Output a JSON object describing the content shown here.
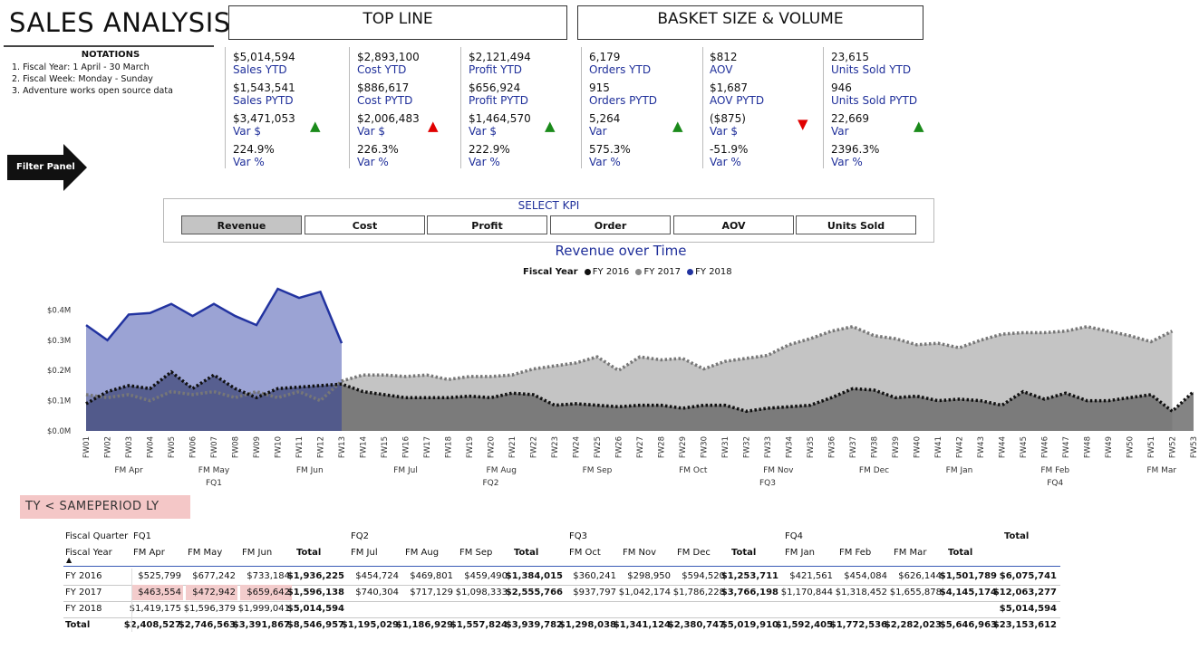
{
  "page": {
    "title": "SALES ANALYSIS"
  },
  "notations": {
    "heading": "NOTATIONS",
    "items": [
      "1. Fiscal Year:  1 April - 30 March",
      "2. Fiscal Week: Monday - Sunday",
      "3. Adventure works open source data"
    ]
  },
  "filter_panel": {
    "label": "Filter Panel"
  },
  "sections": {
    "top_line": "TOP LINE",
    "basket": "BASKET SIZE & VOLUME"
  },
  "kpis": [
    {
      "v1": "$5,014,594",
      "l1": "Sales YTD",
      "v2": "$1,543,541",
      "l2": "Sales PYTD",
      "v3": "$3,471,053",
      "l3": "Var $",
      "v4": "224.9%",
      "l4": "Var %",
      "trend": "up"
    },
    {
      "v1": "$2,893,100",
      "l1": "Cost YTD",
      "v2": "$886,617",
      "l2": "Cost PYTD",
      "v3": "$2,006,483",
      "l3": "Var $",
      "v4": "226.3%",
      "l4": "Var %",
      "trend": "up-red"
    },
    {
      "v1": "$2,121,494",
      "l1": "Profit YTD",
      "v2": "$656,924",
      "l2": "Profit PYTD",
      "v3": "$1,464,570",
      "l3": "Var $",
      "v4": "222.9%",
      "l4": "Var %",
      "trend": "up"
    },
    {
      "v1": "6,179",
      "l1": "Orders YTD",
      "v2": "915",
      "l2": "Orders PYTD",
      "v3": "5,264",
      "l3": "Var",
      "v4": "575.3%",
      "l4": "Var %",
      "trend": "up"
    },
    {
      "v1": "$812",
      "l1": "AOV",
      "v2": "$1,687",
      "l2": "AOV PYTD",
      "v3": "($875)",
      "l3": "Var $",
      "v4": "-51.9%",
      "l4": "Var %",
      "trend": "down"
    },
    {
      "v1": "23,615",
      "l1": "Units Sold YTD",
      "v2": "946",
      "l2": "Units Sold PYTD",
      "v3": "22,669",
      "l3": "Var",
      "v4": "2396.3%",
      "l4": "Var %",
      "trend": "up"
    }
  ],
  "kpi_selector": {
    "caption": "SELECT KPI",
    "buttons": [
      "Revenue",
      "Cost",
      "Profit",
      "Order",
      "AOV",
      "Units Sold"
    ],
    "selected": "Revenue"
  },
  "chart_data": {
    "type": "area",
    "title": "Revenue over Time",
    "legend_title": "Fiscal Year",
    "legend_placement": "top-center",
    "y_ticks": [
      "$0.0M",
      "$0.1M",
      "$0.2M",
      "$0.3M",
      "$0.4M"
    ],
    "ylim": [
      0,
      0.45
    ],
    "x": [
      "FW01",
      "FW02",
      "FW03",
      "FW04",
      "FW05",
      "FW06",
      "FW07",
      "FW08",
      "FW09",
      "FW10",
      "FW11",
      "FW12",
      "FW13",
      "FW14",
      "FW15",
      "FW16",
      "FW17",
      "FW18",
      "FW19",
      "FW20",
      "FW21",
      "FW22",
      "FW23",
      "FW24",
      "FW25",
      "FW26",
      "FW27",
      "FW28",
      "FW29",
      "FW30",
      "FW31",
      "FW32",
      "FW33",
      "FW34",
      "FW35",
      "FW36",
      "FW37",
      "FW38",
      "FW39",
      "FW40",
      "FW41",
      "FW42",
      "FW43",
      "FW44",
      "FW45",
      "FW46",
      "FW47",
      "FW48",
      "FW49",
      "FW50",
      "FW51",
      "FW52",
      "FW53"
    ],
    "months": [
      {
        "label": "FM Apr",
        "at": 2
      },
      {
        "label": "FM May",
        "at": 6
      },
      {
        "label": "FM Jun",
        "at": 10.5
      },
      {
        "label": "FM Jul",
        "at": 15
      },
      {
        "label": "FM Aug",
        "at": 19.5
      },
      {
        "label": "FM Sep",
        "at": 24
      },
      {
        "label": "FM Oct",
        "at": 28.5
      },
      {
        "label": "FM Nov",
        "at": 32.5
      },
      {
        "label": "FM Dec",
        "at": 37
      },
      {
        "label": "FM Jan",
        "at": 41
      },
      {
        "label": "FM Feb",
        "at": 45.5
      },
      {
        "label": "FM Mar",
        "at": 50.5
      }
    ],
    "quarters": [
      {
        "label": "FQ1",
        "at": 6
      },
      {
        "label": "FQ2",
        "at": 19
      },
      {
        "label": "FQ3",
        "at": 32
      },
      {
        "label": "FQ4",
        "at": 45.5
      }
    ],
    "series": [
      {
        "name": "FY 2016",
        "color": "#111111",
        "style": "dotted",
        "values": [
          0.09,
          0.13,
          0.15,
          0.14,
          0.195,
          0.14,
          0.185,
          0.14,
          0.11,
          0.14,
          0.145,
          0.15,
          0.155,
          0.13,
          0.12,
          0.11,
          0.11,
          0.11,
          0.115,
          0.11,
          0.125,
          0.12,
          0.085,
          0.09,
          0.085,
          0.08,
          0.085,
          0.085,
          0.075,
          0.085,
          0.085,
          0.065,
          0.075,
          0.08,
          0.085,
          0.11,
          0.14,
          0.135,
          0.11,
          0.115,
          0.1,
          0.105,
          0.1,
          0.085,
          0.13,
          0.105,
          0.125,
          0.1,
          0.1,
          0.11,
          0.12,
          0.065,
          0.13
        ]
      },
      {
        "name": "FY 2017",
        "color": "#888888",
        "style": "dotted",
        "values": [
          0.12,
          0.11,
          0.12,
          0.1,
          0.13,
          0.12,
          0.13,
          0.11,
          0.13,
          0.11,
          0.13,
          0.1,
          0.165,
          0.185,
          0.185,
          0.18,
          0.185,
          0.17,
          0.18,
          0.18,
          0.185,
          0.205,
          0.215,
          0.225,
          0.245,
          0.2,
          0.245,
          0.235,
          0.24,
          0.205,
          0.23,
          0.24,
          0.25,
          0.285,
          0.305,
          0.33,
          0.345,
          0.315,
          0.305,
          0.285,
          0.29,
          0.275,
          0.3,
          0.32,
          0.325,
          0.325,
          0.33,
          0.345,
          0.33,
          0.315,
          0.295,
          0.33,
          null
        ]
      },
      {
        "name": "FY 2018",
        "color": "#2233a0",
        "style": "solid",
        "values": [
          0.35,
          0.3,
          0.385,
          0.39,
          0.42,
          0.38,
          0.42,
          0.38,
          0.35,
          0.47,
          0.44,
          0.46,
          0.29,
          null,
          null,
          null,
          null,
          null,
          null,
          null,
          null,
          null,
          null,
          null,
          null,
          null,
          null,
          null,
          null,
          null,
          null,
          null,
          null,
          null,
          null,
          null,
          null,
          null,
          null,
          null,
          null,
          null,
          null,
          null,
          null,
          null,
          null,
          null,
          null,
          null,
          null,
          null,
          null
        ]
      }
    ]
  },
  "matrix": {
    "title": "TY < SAMEPERIOD LY",
    "row_header_quarter": "Fiscal Quarter",
    "row_header_year": "Fiscal Year",
    "quarters": [
      "FQ1",
      "FQ2",
      "FQ3",
      "FQ4"
    ],
    "total_label": "Total",
    "columns": [
      "FM Apr",
      "FM May",
      "FM Jun",
      "Total",
      "FM Jul",
      "FM Aug",
      "FM Sep",
      "Total",
      "FM Oct",
      "FM Nov",
      "FM Dec",
      "Total",
      "FM Jan",
      "FM Feb",
      "FM Mar",
      "Total",
      ""
    ],
    "rows": [
      {
        "label": "FY 2016",
        "cells": [
          "$525,799",
          "$677,242",
          "$733,184",
          "$1,936,225",
          "$454,724",
          "$469,801",
          "$459,490",
          "$1,384,015",
          "$360,241",
          "$298,950",
          "$594,520",
          "$1,253,711",
          "$421,561",
          "$454,084",
          "$626,144",
          "$1,501,789",
          "$6,075,741"
        ]
      },
      {
        "label": "FY 2017",
        "cells": [
          "$463,554",
          "$472,942",
          "$659,642",
          "$1,596,138",
          "$740,304",
          "$717,129",
          "$1,098,333",
          "$2,555,766",
          "$937,797",
          "$1,042,174",
          "$1,786,228",
          "$3,766,198",
          "$1,170,844",
          "$1,318,452",
          "$1,655,878",
          "$4,145,174",
          "$12,063,277"
        ]
      },
      {
        "label": "FY 2018",
        "cells": [
          "$1,419,175",
          "$1,596,379",
          "$1,999,041",
          "$5,014,594",
          "",
          "",
          "",
          "",
          "",
          "",
          "",
          "",
          "",
          "",
          "",
          "",
          "$5,014,594"
        ]
      },
      {
        "label": "Total",
        "cells": [
          "$2,408,527",
          "$2,746,563",
          "$3,391,867",
          "$8,546,957",
          "$1,195,029",
          "$1,186,929",
          "$1,557,824",
          "$3,939,782",
          "$1,298,038",
          "$1,341,124",
          "$2,380,747",
          "$5,019,910",
          "$1,592,405",
          "$1,772,536",
          "$2,282,023",
          "$5,646,963",
          "$23,153,612"
        ]
      }
    ]
  }
}
